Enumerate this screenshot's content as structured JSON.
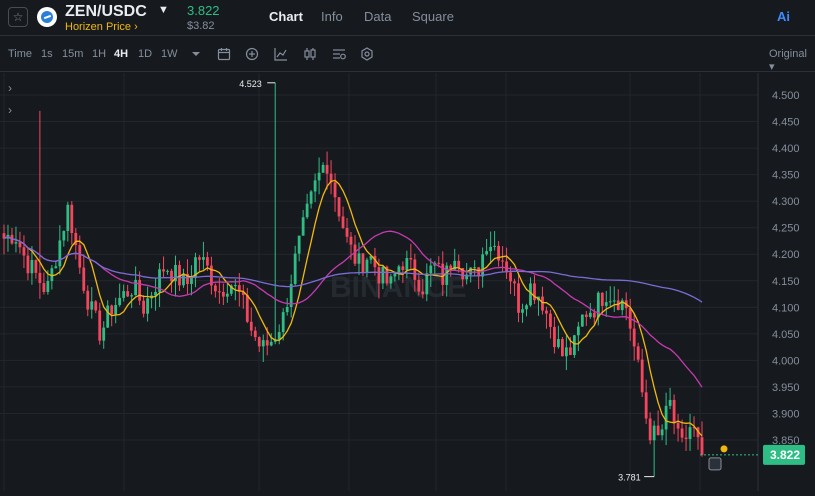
{
  "header": {
    "pair": "ZEN/USDC",
    "pair_name": "Horizen Price",
    "pair_name_suffix": "›",
    "price": "3.822",
    "price_usd": "$3.82",
    "tabs": [
      {
        "label": "Chart",
        "active": true
      },
      {
        "label": "Info",
        "active": false
      },
      {
        "label": "Data",
        "active": false
      },
      {
        "label": "Square",
        "active": false
      }
    ],
    "ai_label": "Ai"
  },
  "toolbar": {
    "timeframes": [
      {
        "label": "Time",
        "active": false
      },
      {
        "label": "1s",
        "active": false
      },
      {
        "label": "15m",
        "active": false
      },
      {
        "label": "1H",
        "active": false
      },
      {
        "label": "4H",
        "active": true
      },
      {
        "label": "1D",
        "active": false
      },
      {
        "label": "1W",
        "active": false
      }
    ],
    "icons": [
      "dropdown-icon",
      "calendar-icon",
      "add-indicator-icon",
      "line-chart-icon",
      "candle-type-icon",
      "settings-list-icon",
      "gear-icon"
    ],
    "view_mode": "Original"
  },
  "colors": {
    "up": "#2ebd85",
    "down": "#f6465d",
    "ma_short": "#f0b90b",
    "ma_mid": "#c73ab0",
    "ma_long": "#7b6bd6",
    "background": "#161a1e",
    "grid": "#23272d"
  },
  "chart_data": {
    "type": "candlestick",
    "y_axis_ticks": [
      "4.500",
      "4.450",
      "4.400",
      "4.350",
      "4.300",
      "4.250",
      "4.200",
      "4.150",
      "4.100",
      "4.050",
      "4.000",
      "3.950",
      "3.900",
      "3.850"
    ],
    "ylim": [
      3.78,
      4.52
    ],
    "high_label": "4.523",
    "low_label": "3.781",
    "last_price_label": "3.822",
    "watermark": "BINANCE",
    "candles_anchor_closes": [
      4.23,
      4.24,
      4.19,
      4.16,
      4.13,
      4.21,
      4.29,
      4.18,
      4.1,
      4.05,
      4.1,
      4.12,
      4.14,
      4.1,
      4.14,
      4.18,
      4.16,
      4.14,
      4.2,
      4.17,
      4.13,
      4.15,
      4.12,
      4.06,
      4.02,
      4.04,
      4.08,
      4.18,
      4.26,
      4.33,
      4.38,
      4.3,
      4.22,
      4.18,
      4.2,
      4.16,
      4.14,
      4.19,
      4.17,
      4.14,
      4.18,
      4.15,
      4.21,
      4.16,
      4.16,
      4.23,
      4.21,
      4.17,
      4.1,
      4.14,
      4.12,
      4.06,
      4.01,
      4.02,
      4.09,
      4.1,
      4.13,
      4.12,
      4.1,
      3.99,
      3.87,
      3.85,
      3.92,
      3.83,
      3.88,
      3.82
    ]
  }
}
